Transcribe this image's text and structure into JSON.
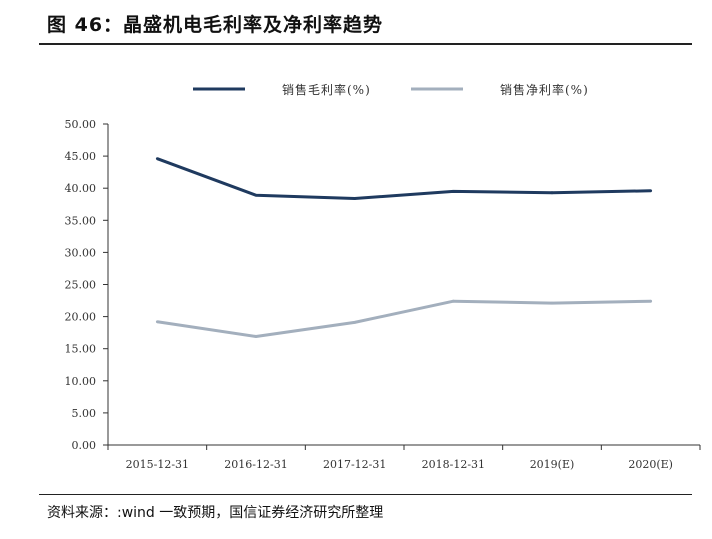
{
  "figure": {
    "title": "图 46：晶盛机电毛利率及净利率趋势",
    "source": "资料来源：:wind 一致预期，国信证券经济研究所整理"
  },
  "chart_data": {
    "type": "line",
    "categories": [
      "2015-12-31",
      "2016-12-31",
      "2017-12-31",
      "2018-12-31",
      "2019(E)",
      "2020(E)"
    ],
    "ylim": [
      0,
      50
    ],
    "yticks": [
      "0.00",
      "5.00",
      "10.00",
      "15.00",
      "20.00",
      "25.00",
      "30.00",
      "35.00",
      "40.00",
      "45.00",
      "50.00"
    ],
    "grid": false,
    "legend_position": "top",
    "series": [
      {
        "name": "销售毛利率(%)",
        "color": "#1f3a5f",
        "values": [
          44.6,
          38.9,
          38.4,
          39.5,
          39.3,
          39.6
        ]
      },
      {
        "name": "销售净利率(%)",
        "color": "#a3afbd",
        "values": [
          19.2,
          16.9,
          19.1,
          22.4,
          22.1,
          22.4
        ]
      }
    ]
  }
}
